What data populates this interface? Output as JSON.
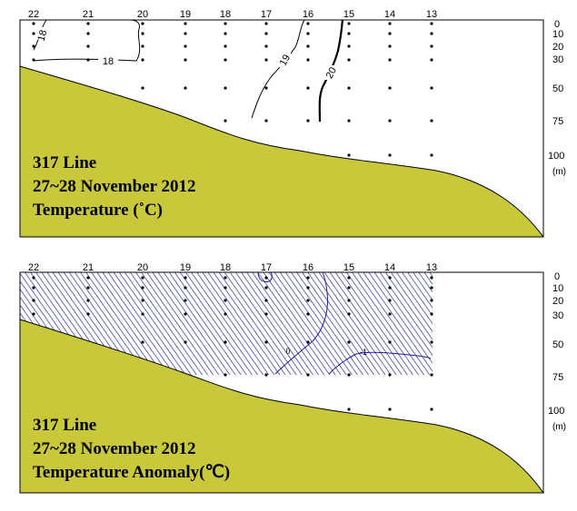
{
  "top_panel": {
    "stations": [
      "22",
      "21",
      "20",
      "19",
      "18",
      "17",
      "16",
      "15",
      "14",
      "13"
    ],
    "depths": [
      "0",
      "10",
      "20",
      "30",
      "50",
      "75",
      "100"
    ],
    "unit": "(m)",
    "contour_labels": [
      "18",
      "18",
      "19",
      "20"
    ],
    "title_lines": [
      "317 Line",
      "27~28 November 2012",
      "Temperature (˚C)"
    ]
  },
  "bottom_panel": {
    "stations": [
      "22",
      "21",
      "20",
      "19",
      "18",
      "17",
      "16",
      "15",
      "14",
      "13"
    ],
    "depths": [
      "0",
      "10",
      "20",
      "30",
      "50",
      "75",
      "100"
    ],
    "unit": "(m)",
    "contour_labels": [
      "0",
      "-1"
    ],
    "title_lines": [
      "317 Line",
      "27~28 November 2012",
      "Temperature Anomaly(℃)"
    ]
  },
  "colors": {
    "seabed": "#c8c83a",
    "hatch": "#1a1aa0",
    "outline": "#000000"
  }
}
